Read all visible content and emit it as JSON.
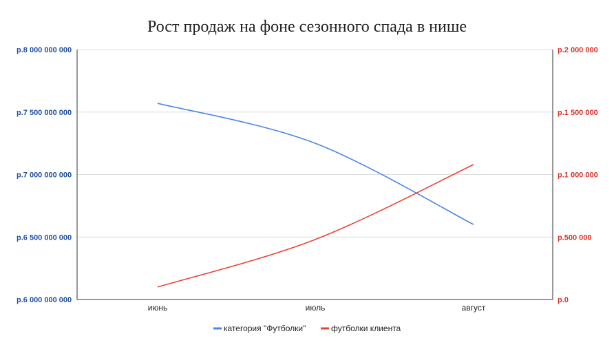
{
  "chart_data": {
    "type": "line",
    "title": "Рост продаж на фоне сезонного спада в нише",
    "categories": [
      "июнь",
      "июль",
      "август"
    ],
    "series": [
      {
        "name": "категория \"Футболки\"",
        "axis": "left",
        "color": "#4a86e8",
        "values": [
          7570000000,
          7250000000,
          6600000000
        ]
      },
      {
        "name": "футболки клиента",
        "axis": "right",
        "color": "#ea4335",
        "values": [
          100000,
          480000,
          1080000
        ]
      }
    ],
    "y_left": {
      "range": [
        6000000000,
        8000000000
      ],
      "ticks": [
        6000000000,
        6500000000,
        7000000000,
        7500000000,
        8000000000
      ],
      "tick_labels": [
        "р.6 000 000 000",
        "р.6 500 000 000",
        "р.7 000 000 000",
        "р.7 500 000 000",
        "р.8 000 000 000"
      ],
      "color": "#1f4e9c"
    },
    "y_right": {
      "range": [
        0,
        2000000
      ],
      "ticks": [
        0,
        500000,
        1000000,
        1500000,
        2000000
      ],
      "tick_labels": [
        "р.0",
        "р.500 000",
        "р.1 000 000",
        "р.1 500 000",
        "р.2 000 000"
      ],
      "color": "#d93025"
    },
    "grid": true,
    "legend_position": "bottom",
    "smooth": true
  }
}
